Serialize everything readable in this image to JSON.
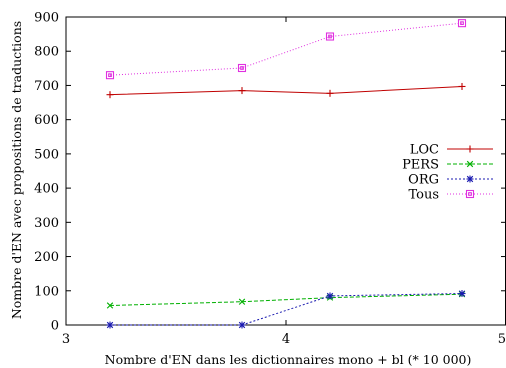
{
  "chart_data": {
    "type": "line",
    "xlabel": "Nombre d'EN dans les dictionnaires mono + bl (* 10 000)",
    "ylabel": "Nombre d'EN avec propositions de traductions",
    "xlim": [
      3,
      5
    ],
    "ylim": [
      0,
      900
    ],
    "xticks": [
      "3",
      "4",
      "5"
    ],
    "yticks": [
      "0",
      "100",
      "200",
      "300",
      "400",
      "500",
      "600",
      "700",
      "800",
      "900"
    ],
    "grid": false,
    "legend_position": "right",
    "x": [
      3.2,
      3.8,
      4.2,
      4.8
    ],
    "series": [
      {
        "name": "LOC",
        "values": [
          673,
          685,
          677,
          697
        ],
        "color": "#c00000",
        "marker": "plus",
        "dash": ""
      },
      {
        "name": "PERS",
        "values": [
          57,
          68,
          80,
          90
        ],
        "color": "#00b000",
        "marker": "x",
        "dash": "4,2"
      },
      {
        "name": "ORG",
        "values": [
          0,
          0,
          85,
          92
        ],
        "color": "#1a1ab0",
        "marker": "star",
        "dash": "2,2"
      },
      {
        "name": "Tous",
        "values": [
          730,
          751,
          843,
          882
        ],
        "color": "#e030e0",
        "marker": "square",
        "dash": "1,2"
      }
    ]
  }
}
